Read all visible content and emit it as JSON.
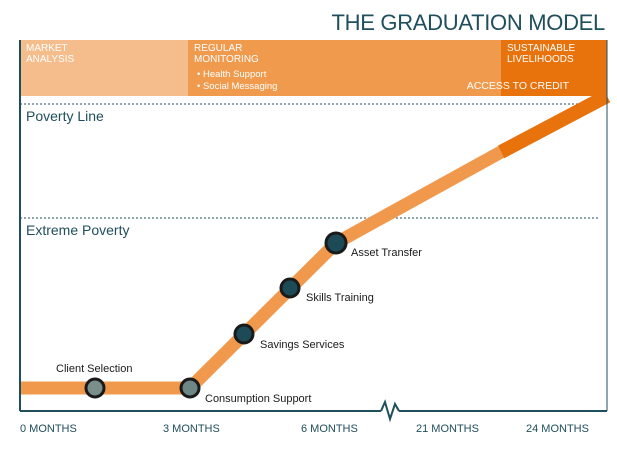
{
  "title": "THE GRADUATION MODEL",
  "bands": {
    "market": {
      "label_line1": "MARKET",
      "label_line2": "ANALYSIS"
    },
    "regular": {
      "label_line1": "REGULAR",
      "label_line2": "MONITORING",
      "bullets": [
        "• Health Support",
        "• Social Messaging"
      ]
    },
    "sustainable": {
      "label_line1": "SUSTAINABLE",
      "label_line2": "LIVELIHOODS"
    },
    "access_label": "ACCESS TO CREDIT"
  },
  "levels": {
    "poverty_line": "Poverty Line",
    "extreme_poverty": "Extreme Poverty"
  },
  "stages": [
    "Client Selection",
    "Consumption Support",
    "Savings Services",
    "Skills  Training",
    "Asset Transfer"
  ],
  "x_axis": [
    "0 MONTHS",
    "3 MONTHS",
    "6 MONTHS",
    "21 MONTHS",
    "24 MONTHS"
  ],
  "colors": {
    "band_light": "#f6bd8c",
    "band_mid": "#f09a4e",
    "band_dark": "#e8720c",
    "path": "#f0994d",
    "node_fill_light": "#7a8e8a",
    "node_fill_dark": "#1d4a57",
    "node_ring": "#1a1a1a",
    "axis": "#1f4e5c"
  }
}
